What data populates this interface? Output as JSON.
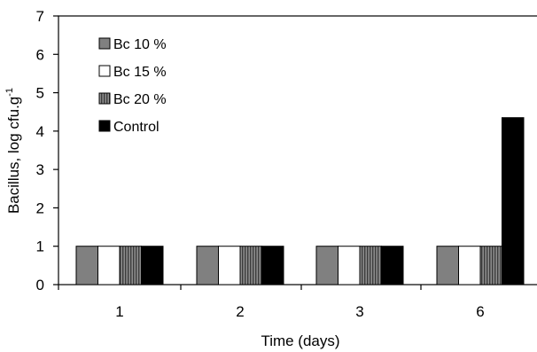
{
  "chart_data": {
    "type": "bar",
    "xlabel": "Time (days)",
    "ylabel": "Bacillus, log cfu.g",
    "ylabel_sup": "-1",
    "categories": [
      "1",
      "2",
      "3",
      "6"
    ],
    "ylim": [
      0,
      7
    ],
    "yticks": [
      0,
      1,
      2,
      3,
      4,
      5,
      6,
      7
    ],
    "legend_position": "top-left",
    "grid": false,
    "series": [
      {
        "name": "Bc 10 %",
        "values": [
          1.0,
          1.0,
          1.0,
          1.0
        ],
        "color": "#808080",
        "pattern": "solid"
      },
      {
        "name": "Bc 15 %",
        "values": [
          1.0,
          1.0,
          1.0,
          1.0
        ],
        "color": "#ffffff",
        "pattern": "solid"
      },
      {
        "name": "Bc 20 %",
        "values": [
          1.0,
          1.0,
          1.0,
          1.0
        ],
        "color": "#6e6e6e",
        "pattern": "vertical-stripes"
      },
      {
        "name": "Control",
        "values": [
          1.0,
          1.0,
          1.0,
          4.35
        ],
        "color": "#000000",
        "pattern": "solid"
      }
    ]
  }
}
